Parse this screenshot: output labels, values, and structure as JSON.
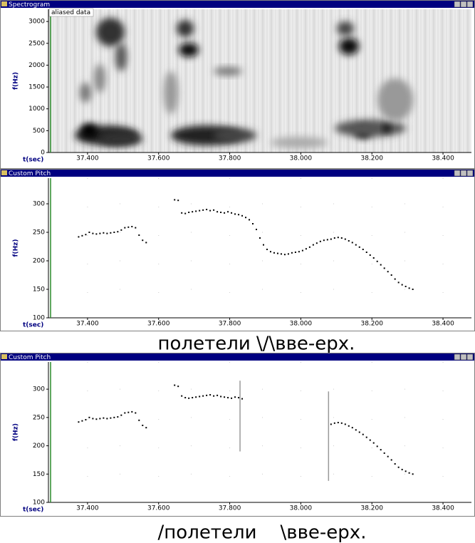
{
  "chart_data": [
    {
      "type": "spectrogram",
      "title": "Spectrogram",
      "annotation": "aliased data",
      "x_label": "t(sec)",
      "y_label": "f(Hz)",
      "xlim": [
        37.29,
        38.48
      ],
      "xticks": [
        {
          "value": 37.4,
          "label": "37.400"
        },
        {
          "value": 37.6,
          "label": "37.600"
        },
        {
          "value": 37.8,
          "label": "37.800"
        },
        {
          "value": 38.0,
          "label": "38.000"
        },
        {
          "value": 38.2,
          "label": "38.200"
        },
        {
          "value": 38.4,
          "label": "38.400"
        }
      ],
      "ylim": [
        0,
        3280
      ],
      "yticks": [
        0,
        500,
        1000,
        1500,
        2000,
        2500,
        3000
      ]
    },
    {
      "type": "scatter",
      "title": "Custom Pitch",
      "x_label": "t(sec)",
      "y_label": "f(Hz)",
      "xlim": [
        37.29,
        38.48
      ],
      "xticks": [
        {
          "value": 37.4,
          "label": "37.400"
        },
        {
          "value": 37.6,
          "label": "37.600"
        },
        {
          "value": 37.8,
          "label": "37.800"
        },
        {
          "value": 38.0,
          "label": "38.000"
        },
        {
          "value": 38.2,
          "label": "38.200"
        },
        {
          "value": 38.4,
          "label": "38.400"
        }
      ],
      "ylim": [
        100,
        345
      ],
      "yticks": [
        100,
        150,
        200,
        250,
        300
      ],
      "grid": true,
      "series": [
        {
          "color": "#000000",
          "x": [
            37.375,
            37.385,
            37.395,
            37.405,
            37.415,
            37.425,
            37.435,
            37.445,
            37.455,
            37.465,
            37.475,
            37.485,
            37.495,
            37.505,
            37.515,
            37.525,
            37.535,
            37.545,
            37.555,
            37.565,
            37.645,
            37.655,
            37.665,
            37.675,
            37.685,
            37.695,
            37.705,
            37.715,
            37.725,
            37.735,
            37.745,
            37.755,
            37.765,
            37.775,
            37.785,
            37.795,
            37.805,
            37.815,
            37.825,
            37.835,
            37.845,
            37.855,
            37.865,
            37.875,
            37.885,
            37.895,
            37.905,
            37.915,
            37.925,
            37.935,
            37.945,
            37.955,
            37.965,
            37.975,
            37.985,
            37.995,
            38.005,
            38.015,
            38.025,
            38.035,
            38.045,
            38.055,
            38.065,
            38.075,
            38.085,
            38.095,
            38.105,
            38.115,
            38.125,
            38.135,
            38.145,
            38.155,
            38.165,
            38.175,
            38.185,
            38.195,
            38.205,
            38.215,
            38.225,
            38.235,
            38.245,
            38.255,
            38.265,
            38.275,
            38.285,
            38.295,
            38.305,
            38.315
          ],
          "values": [
            242,
            244,
            246,
            250,
            248,
            247,
            248,
            249,
            248,
            249,
            250,
            251,
            254,
            258,
            259,
            260,
            258,
            245,
            236,
            232,
            307,
            306,
            284,
            283,
            285,
            286,
            287,
            288,
            289,
            290,
            288,
            289,
            286,
            285,
            284,
            286,
            284,
            282,
            281,
            279,
            276,
            272,
            265,
            255,
            240,
            228,
            220,
            216,
            214,
            213,
            212,
            211,
            212,
            214,
            215,
            216,
            218,
            221,
            224,
            228,
            231,
            234,
            236,
            237,
            238,
            240,
            241,
            240,
            238,
            235,
            232,
            228,
            224,
            220,
            215,
            210,
            205,
            199,
            193,
            187,
            181,
            175,
            168,
            162,
            158,
            155,
            152,
            150
          ]
        }
      ]
    },
    {
      "type": "scatter",
      "title": "Custom Pitch",
      "x_label": "t(sec)",
      "y_label": "f(Hz)",
      "xlim": [
        37.29,
        38.48
      ],
      "xticks": [
        {
          "value": 37.4,
          "label": "37.400"
        },
        {
          "value": 37.6,
          "label": "37.600"
        },
        {
          "value": 37.8,
          "label": "37.800"
        },
        {
          "value": 38.0,
          "label": "38.000"
        },
        {
          "value": 38.2,
          "label": "38.200"
        },
        {
          "value": 38.4,
          "label": "38.400"
        }
      ],
      "ylim": [
        100,
        348
      ],
      "yticks": [
        100,
        150,
        200,
        250,
        300
      ],
      "grid": true,
      "series": [
        {
          "color": "#000000",
          "x": [
            37.375,
            37.385,
            37.395,
            37.405,
            37.415,
            37.425,
            37.435,
            37.445,
            37.455,
            37.465,
            37.475,
            37.485,
            37.495,
            37.505,
            37.515,
            37.525,
            37.535,
            37.545,
            37.555,
            37.565,
            37.645,
            37.655,
            37.665,
            37.675,
            37.685,
            37.695,
            37.705,
            37.715,
            37.725,
            37.735,
            37.745,
            37.755,
            37.765,
            37.775,
            37.785,
            37.795,
            37.805,
            37.815,
            37.825,
            37.835,
            38.085,
            38.095,
            38.105,
            38.115,
            38.125,
            38.135,
            38.145,
            38.155,
            38.165,
            38.175,
            38.185,
            38.195,
            38.205,
            38.215,
            38.225,
            38.235,
            38.245,
            38.255,
            38.265,
            38.275,
            38.285,
            38.295,
            38.305,
            38.315
          ],
          "values": [
            242,
            244,
            246,
            250,
            248,
            247,
            248,
            249,
            248,
            249,
            250,
            251,
            254,
            258,
            259,
            260,
            258,
            245,
            236,
            232,
            307,
            305,
            288,
            285,
            284,
            285,
            286,
            287,
            288,
            289,
            290,
            288,
            289,
            287,
            286,
            285,
            284,
            286,
            285,
            283,
            238,
            240,
            241,
            240,
            238,
            235,
            232,
            228,
            224,
            220,
            215,
            210,
            205,
            199,
            193,
            187,
            181,
            175,
            168,
            162,
            158,
            155,
            152,
            150
          ]
        }
      ],
      "markers": [
        {
          "x": 37.829,
          "y": [
            190,
            315
          ]
        },
        {
          "x": 38.078,
          "y": [
            138,
            296
          ]
        }
      ],
      "marker_color": "#999999"
    }
  ],
  "captions": [
    "полетели \\/\\вве-ерх.",
    "/полетели    \\вве-ерх."
  ]
}
